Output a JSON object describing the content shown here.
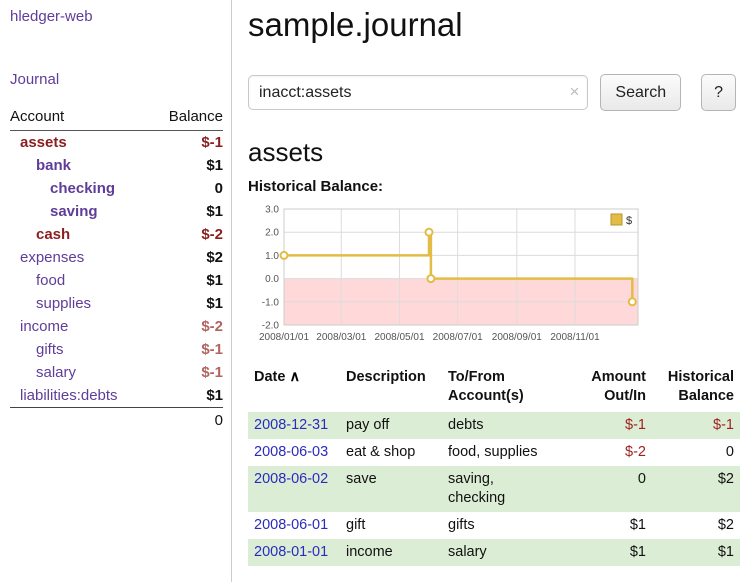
{
  "colors": {
    "link_purple": "#5f3d99",
    "date_link_blue": "#2b2bbd",
    "negative_red": "#8b1f1f",
    "negative_rose": "#b3645f",
    "row_green": "#dcedd5",
    "chart_line_gold": "#e2bc45",
    "chart_negative_region": "#ffd9d9"
  },
  "sidebar": {
    "app_title": "hledger-web",
    "journal_link": "Journal",
    "accounts": {
      "col_account": "Account",
      "col_balance": "Balance",
      "rows": [
        {
          "name": "assets",
          "balance": "$-1",
          "level": 0,
          "bold": true,
          "name_tone": "red",
          "bal_tone": "red"
        },
        {
          "name": "bank",
          "balance": "$1",
          "level": 1,
          "bold": true,
          "name_tone": "purple",
          "bal_tone": "black"
        },
        {
          "name": "checking",
          "balance": "0",
          "level": 2,
          "bold": true,
          "name_tone": "purple",
          "bal_tone": "black"
        },
        {
          "name": "saving",
          "balance": "$1",
          "level": 2,
          "bold": true,
          "name_tone": "purple",
          "bal_tone": "black"
        },
        {
          "name": "cash",
          "balance": "$-2",
          "level": 1,
          "bold": true,
          "name_tone": "red",
          "bal_tone": "red"
        },
        {
          "name": "expenses",
          "balance": "$2",
          "level": 0,
          "bold": false,
          "name_tone": "purple",
          "bal_tone": "black"
        },
        {
          "name": "food",
          "balance": "$1",
          "level": 1,
          "bold": false,
          "name_tone": "purple",
          "bal_tone": "black"
        },
        {
          "name": "supplies",
          "balance": "$1",
          "level": 1,
          "bold": false,
          "name_tone": "purple",
          "bal_tone": "black"
        },
        {
          "name": "income",
          "balance": "$-2",
          "level": 0,
          "bold": false,
          "name_tone": "purple",
          "bal_tone": "rose"
        },
        {
          "name": "gifts",
          "balance": "$-1",
          "level": 1,
          "bold": false,
          "name_tone": "purple",
          "bal_tone": "rose"
        },
        {
          "name": "salary",
          "balance": "$-1",
          "level": 1,
          "bold": false,
          "name_tone": "purple",
          "bal_tone": "rose"
        },
        {
          "name": "liabilities:debts",
          "balance": "$1",
          "level": 0,
          "bold": false,
          "name_tone": "purple",
          "bal_tone": "black"
        }
      ],
      "total": "0"
    }
  },
  "main": {
    "title": "sample.journal",
    "search": {
      "value": "inacct:assets",
      "clear_icon": "×",
      "button_label": "Search",
      "help_label": "?"
    },
    "section_title": "assets",
    "chart_label": "Historical Balance:",
    "register": {
      "sort_icon": "∧",
      "headers": {
        "date": "Date",
        "description": "Description",
        "accounts": "To/From\nAccount(s)",
        "amount": "Amount\nOut/In",
        "balance": "Historical\nBalance"
      },
      "rows": [
        {
          "date": "2008-12-31",
          "description": "pay off",
          "accounts": "debts",
          "amount": "$-1",
          "amount_tone": "red",
          "balance": "$-1",
          "balance_tone": "red"
        },
        {
          "date": "2008-06-03",
          "description": "eat & shop",
          "accounts": "food, supplies",
          "amount": "$-2",
          "amount_tone": "red",
          "balance": "0",
          "balance_tone": "black"
        },
        {
          "date": "2008-06-02",
          "description": "save",
          "accounts": "saving,\nchecking",
          "amount": "0",
          "amount_tone": "black",
          "balance": "$2",
          "balance_tone": "black"
        },
        {
          "date": "2008-06-01",
          "description": "gift",
          "accounts": "gifts",
          "amount": "$1",
          "amount_tone": "black",
          "balance": "$2",
          "balance_tone": "black"
        },
        {
          "date": "2008-01-01",
          "description": "income",
          "accounts": "salary",
          "amount": "$1",
          "amount_tone": "black",
          "balance": "$1",
          "balance_tone": "black"
        }
      ]
    }
  },
  "chart_data": {
    "type": "line",
    "step": true,
    "title": "Historical Balance",
    "legend": "$",
    "legend_position": "top-right",
    "grid": true,
    "series": [
      {
        "name": "$",
        "color": "#e2bc45",
        "points": [
          {
            "date": "2008-01-01",
            "value": 1
          },
          {
            "date": "2008-06-01",
            "value": 2
          },
          {
            "date": "2008-06-03",
            "value": 0
          },
          {
            "date": "2008-12-31",
            "value": -1
          }
        ]
      }
    ],
    "x_start": "2008-01-01",
    "x_end": "2009-01-06",
    "xtick_labels": [
      "2008/01/01",
      "2008/03/01",
      "2008/05/01",
      "2008/07/01",
      "2008/09/01",
      "2008/11/01"
    ],
    "yticks": [
      3.0,
      2.0,
      1.0,
      0.0,
      -1.0,
      -2.0
    ],
    "ylim": [
      -2,
      3
    ],
    "negative_region_color": "#ffd9d9"
  }
}
